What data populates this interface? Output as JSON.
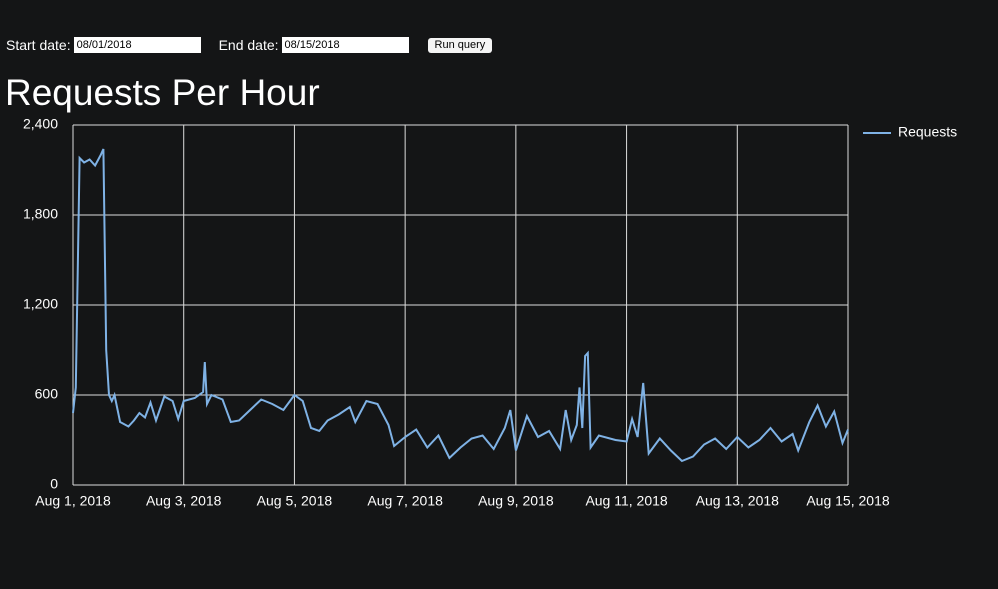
{
  "form": {
    "start_label": "Start date:",
    "start_value": "08/01/2018",
    "end_label": "End date:",
    "end_value": "08/15/2018",
    "button": "Run query"
  },
  "chart_data": {
    "type": "line",
    "title": "Requests Per Hour",
    "x": [
      0,
      0.05,
      0.12,
      0.2,
      0.3,
      0.4,
      0.5,
      0.55,
      0.6,
      0.65,
      0.7,
      0.75,
      0.85,
      1.0,
      1.1,
      1.2,
      1.3,
      1.4,
      1.5,
      1.65,
      1.8,
      1.9,
      2.0,
      2.2,
      2.35,
      2.38,
      2.42,
      2.5,
      2.7,
      2.85,
      3.0,
      3.2,
      3.4,
      3.6,
      3.8,
      4.0,
      4.15,
      4.3,
      4.45,
      4.6,
      4.8,
      5.0,
      5.1,
      5.3,
      5.5,
      5.7,
      5.8,
      6.0,
      6.2,
      6.4,
      6.6,
      6.8,
      7.0,
      7.2,
      7.4,
      7.6,
      7.8,
      7.9,
      8.0,
      8.2,
      8.4,
      8.6,
      8.8,
      8.9,
      9.0,
      9.1,
      9.15,
      9.2,
      9.25,
      9.3,
      9.35,
      9.5,
      9.8,
      10.0,
      10.1,
      10.2,
      10.3,
      10.4,
      10.6,
      10.8,
      11.0,
      11.2,
      11.4,
      11.6,
      11.8,
      12.0,
      12.2,
      12.4,
      12.6,
      12.8,
      13.0,
      13.1,
      13.3,
      13.45,
      13.6,
      13.75,
      13.9,
      14.0
    ],
    "series": [
      {
        "name": "Requests",
        "color": "#7fb2e5",
        "values": [
          480,
          650,
          2180,
          2150,
          2170,
          2130,
          2200,
          2240,
          900,
          600,
          560,
          600,
          420,
          390,
          430,
          480,
          450,
          550,
          430,
          590,
          560,
          440,
          560,
          580,
          620,
          820,
          540,
          600,
          570,
          420,
          430,
          500,
          570,
          540,
          500,
          600,
          560,
          380,
          360,
          430,
          470,
          520,
          420,
          560,
          540,
          400,
          260,
          320,
          370,
          250,
          330,
          180,
          250,
          310,
          330,
          240,
          380,
          500,
          230,
          460,
          320,
          360,
          240,
          500,
          300,
          400,
          650,
          380,
          860,
          880,
          250,
          330,
          300,
          290,
          440,
          320,
          680,
          210,
          310,
          230,
          160,
          190,
          270,
          310,
          240,
          320,
          250,
          300,
          380,
          290,
          340,
          230,
          420,
          530,
          390,
          490,
          280,
          370
        ]
      }
    ],
    "xlim": [
      0,
      14
    ],
    "xticks": [
      {
        "value": 0,
        "label": "Aug 1, 2018"
      },
      {
        "value": 2,
        "label": "Aug 3, 2018"
      },
      {
        "value": 4,
        "label": "Aug 5, 2018"
      },
      {
        "value": 6,
        "label": "Aug 7, 2018"
      },
      {
        "value": 8,
        "label": "Aug 9, 2018"
      },
      {
        "value": 10,
        "label": "Aug 11, 2018"
      },
      {
        "value": 12,
        "label": "Aug 13, 2018"
      },
      {
        "value": 14,
        "label": "Aug 15, 2018"
      }
    ],
    "ylim": [
      0,
      2400
    ],
    "yticks": [
      0,
      600,
      {
        "value": 1200,
        "label": "1,200"
      },
      {
        "value": 1800,
        "label": "1,800"
      },
      {
        "value": 2400,
        "label": "2,400"
      }
    ],
    "grid": true,
    "legend": "top-right"
  }
}
